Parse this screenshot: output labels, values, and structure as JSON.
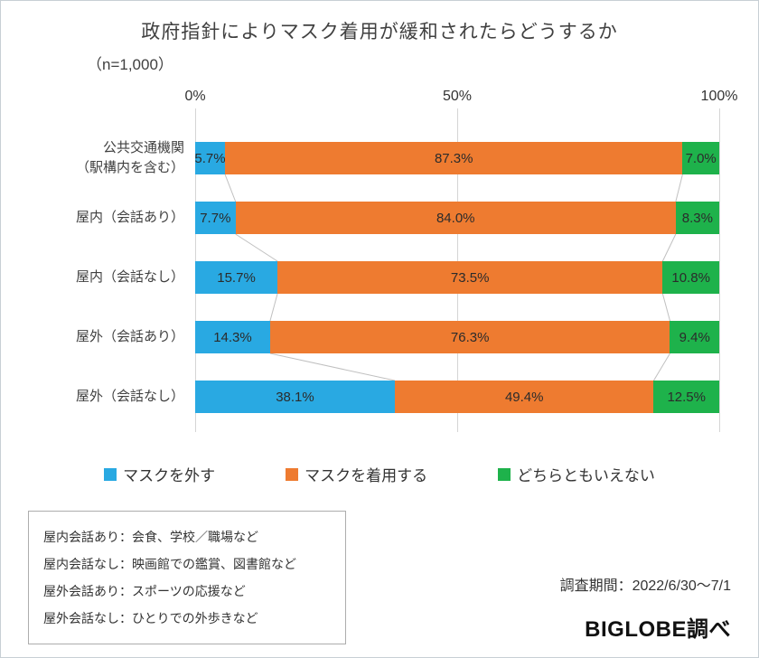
{
  "chart_data": {
    "type": "bar",
    "stacked": true,
    "orientation": "horizontal",
    "title": "政府指針によりマスク着用が緩和されたらどうするか",
    "subtitle": "（n=1,000）",
    "x_axis": {
      "ticks": [
        "0%",
        "50%",
        "100%"
      ],
      "range": [
        0,
        100
      ],
      "gridlines": true
    },
    "categories": [
      "公共交通機関\n（駅構内を含む）",
      "屋内（会話あり）",
      "屋内（会話なし）",
      "屋外（会話あり）",
      "屋外（会話なし）"
    ],
    "series": [
      {
        "name": "マスクを外す",
        "color": "#29A9E2",
        "values": [
          5.7,
          7.7,
          15.7,
          14.3,
          38.1
        ]
      },
      {
        "name": "マスクを着用する",
        "color": "#EE7B30",
        "values": [
          87.3,
          84.0,
          73.5,
          76.3,
          49.4
        ]
      },
      {
        "name": "どちらともいえない",
        "color": "#1EB24B",
        "values": [
          7.0,
          8.3,
          10.8,
          9.4,
          12.5
        ]
      }
    ],
    "legend_position": "bottom",
    "connector_lines": true
  },
  "notes": {
    "lines": [
      "屋内会話あり：会食、学校／職場など",
      "屋内会話なし：映画館での鑑賞、図書館など",
      "屋外会話あり：スポーツの応援など",
      "屋外会話なし：ひとりでの外歩きなど"
    ]
  },
  "footer": {
    "survey_period": "調査期間：2022/6/30～7/1",
    "credit": "BIGLOBE調べ"
  }
}
